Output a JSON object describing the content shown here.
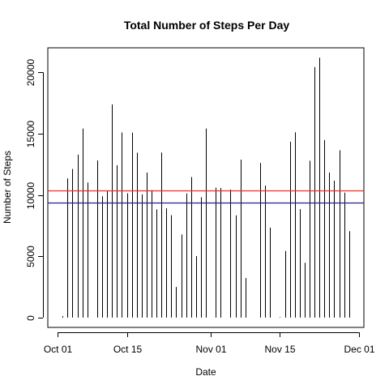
{
  "chart_data": {
    "type": "bar",
    "style": "vertical-lines",
    "title": "Total Number of Steps Per Day",
    "xlabel": "Date",
    "ylabel": "Number of Steps",
    "x_ticks": [
      {
        "date": "2012-10-01",
        "label": "Oct 01"
      },
      {
        "date": "2012-10-15",
        "label": "Oct 15"
      },
      {
        "date": "2012-11-01",
        "label": "Nov 01"
      },
      {
        "date": "2012-11-15",
        "label": "Nov 15"
      },
      {
        "date": "2012-12-01",
        "label": "Dec 01"
      }
    ],
    "y_ticks": [
      0,
      5000,
      10000,
      15000,
      20000
    ],
    "xlim": [
      "2012-09-29",
      "2012-12-02"
    ],
    "ylim": [
      -800,
      22000
    ],
    "x": [
      "2012-10-01",
      "2012-10-02",
      "2012-10-03",
      "2012-10-04",
      "2012-10-05",
      "2012-10-06",
      "2012-10-07",
      "2012-10-08",
      "2012-10-09",
      "2012-10-10",
      "2012-10-11",
      "2012-10-12",
      "2012-10-13",
      "2012-10-14",
      "2012-10-15",
      "2012-10-16",
      "2012-10-17",
      "2012-10-18",
      "2012-10-19",
      "2012-10-20",
      "2012-10-21",
      "2012-10-22",
      "2012-10-23",
      "2012-10-24",
      "2012-10-25",
      "2012-10-26",
      "2012-10-27",
      "2012-10-28",
      "2012-10-29",
      "2012-10-30",
      "2012-10-31",
      "2012-11-01",
      "2012-11-02",
      "2012-11-03",
      "2012-11-04",
      "2012-11-05",
      "2012-11-06",
      "2012-11-07",
      "2012-11-08",
      "2012-11-09",
      "2012-11-10",
      "2012-11-11",
      "2012-11-12",
      "2012-11-13",
      "2012-11-14",
      "2012-11-15",
      "2012-11-16",
      "2012-11-17",
      "2012-11-18",
      "2012-11-19",
      "2012-11-20",
      "2012-11-21",
      "2012-11-22",
      "2012-11-23",
      "2012-11-24",
      "2012-11-25",
      "2012-11-26",
      "2012-11-27",
      "2012-11-28",
      "2012-11-29",
      "2012-11-30"
    ],
    "values": [
      0,
      126,
      11352,
      12116,
      13294,
      15420,
      11015,
      0,
      12811,
      9900,
      10304,
      17382,
      12426,
      15098,
      10139,
      15084,
      13452,
      10056,
      11829,
      10395,
      8821,
      13460,
      8918,
      8355,
      2492,
      6778,
      10119,
      11458,
      5018,
      9819,
      15414,
      0,
      10600,
      10571,
      0,
      10439,
      8334,
      12883,
      3219,
      0,
      0,
      12608,
      10765,
      7336,
      0,
      41,
      5441,
      14339,
      15110,
      8841,
      4472,
      12787,
      20427,
      21194,
      14478,
      11834,
      11162,
      13646,
      10183,
      7047,
      0
    ],
    "reference_lines": [
      {
        "value": 10395,
        "color": "#d9342b"
      },
      {
        "value": 9354,
        "color": "#1f1f8f"
      }
    ],
    "bar_color": "#000000",
    "grid": false
  }
}
